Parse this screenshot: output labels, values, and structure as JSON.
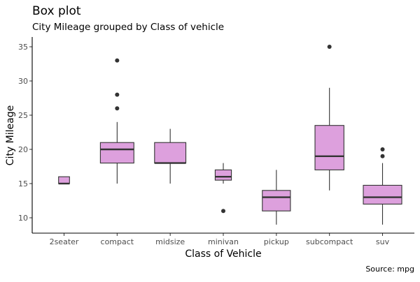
{
  "chart_data": {
    "type": "box",
    "title": "Box plot",
    "subtitle": "City Mileage grouped by Class of vehicle",
    "xlabel": "Class of Vehicle",
    "ylabel": "City Mileage",
    "caption": "Source: mpg",
    "ylim": [
      8,
      36
    ],
    "yticks": [
      10,
      15,
      20,
      25,
      30,
      35
    ],
    "ytick_labels": [
      "10",
      "15",
      "20",
      "25",
      "30",
      "35"
    ],
    "grid": false,
    "fill_color": "#DDA0DD",
    "line_color": "#333333",
    "varwidth": true,
    "categories": [
      "2seater",
      "compact",
      "midsize",
      "minivan",
      "pickup",
      "subcompact",
      "suv"
    ],
    "boxes": [
      {
        "min": 15,
        "q1": 15,
        "median": 15,
        "q3": 16,
        "max": 16,
        "outliers": [],
        "n": 5
      },
      {
        "min": 15,
        "q1": 18,
        "median": 20,
        "q3": 21,
        "max": 24,
        "outliers": [
          26,
          28,
          33
        ],
        "n": 47
      },
      {
        "min": 15,
        "q1": 18,
        "median": 18,
        "q3": 21,
        "max": 23,
        "outliers": [],
        "n": 41
      },
      {
        "min": 15,
        "q1": 15.5,
        "median": 16,
        "q3": 17,
        "max": 18,
        "outliers": [
          11
        ],
        "n": 11
      },
      {
        "min": 9,
        "q1": 11,
        "median": 13,
        "q3": 14,
        "max": 17,
        "outliers": [],
        "n": 33
      },
      {
        "min": 14,
        "q1": 17,
        "median": 19,
        "q3": 23.5,
        "max": 29,
        "outliers": [
          35
        ],
        "n": 35
      },
      {
        "min": 9,
        "q1": 12,
        "median": 13,
        "q3": 14.75,
        "max": 18,
        "outliers": [
          19,
          20
        ],
        "n": 62
      }
    ]
  }
}
